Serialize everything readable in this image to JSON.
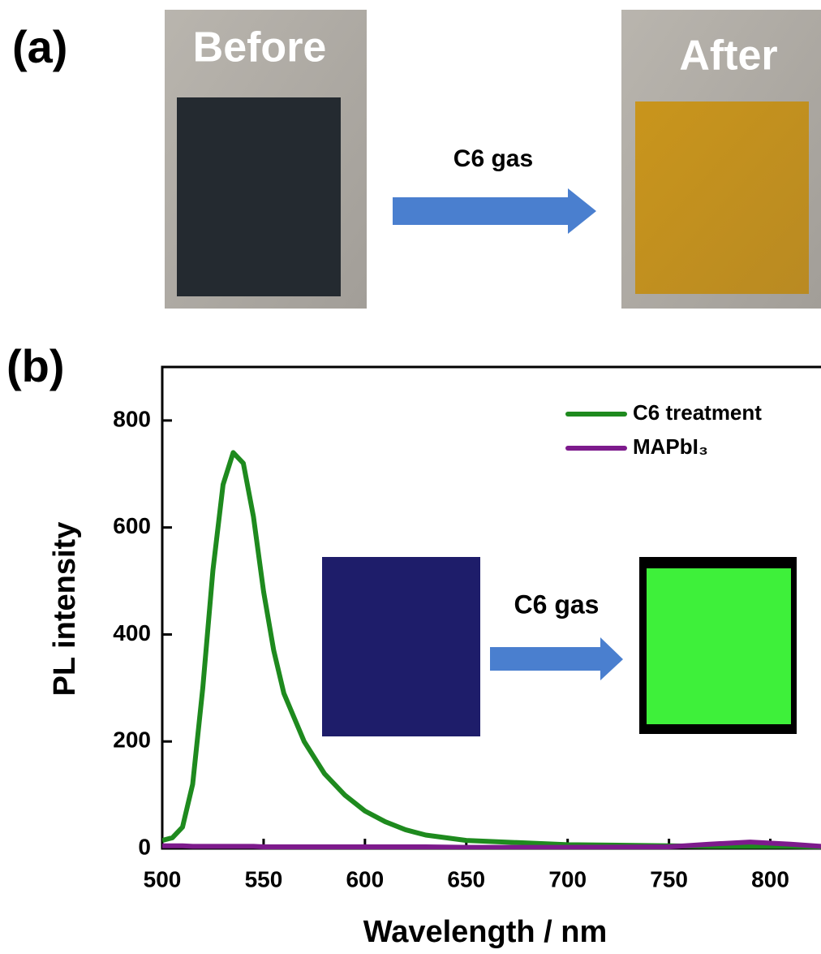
{
  "panel_a": {
    "label": "(a)",
    "before": "Before",
    "after": "After",
    "arrow_label": "C6 gas"
  },
  "chart_data": {
    "type": "line",
    "panel_label": "(b)",
    "inset_arrow_label": "C6 gas",
    "x_label": "Wavelength / nm",
    "y_label": "PL intensity",
    "x": [
      500,
      505,
      510,
      515,
      520,
      525,
      530,
      535,
      540,
      545,
      550,
      555,
      560,
      570,
      580,
      590,
      600,
      610,
      620,
      630,
      650,
      700,
      750,
      770,
      790,
      810,
      825
    ],
    "series": [
      {
        "name": "C6 treatment",
        "color": "#1e8a1e",
        "values": [
          15,
          20,
          40,
          120,
          300,
          520,
          680,
          740,
          720,
          620,
          480,
          370,
          290,
          200,
          140,
          100,
          70,
          50,
          35,
          25,
          15,
          7,
          5,
          4,
          4,
          4,
          3
        ]
      },
      {
        "name": "MAPbI₃",
        "color": "#7d1a8c",
        "values": [
          5,
          5,
          5,
          4,
          4,
          4,
          4,
          4,
          4,
          4,
          3,
          3,
          3,
          3,
          3,
          3,
          3,
          3,
          3,
          3,
          2,
          2,
          3,
          8,
          12,
          8,
          4
        ]
      }
    ],
    "xlim": [
      500,
      825
    ],
    "ylim": [
      0,
      900
    ],
    "xticks": [
      500,
      550,
      600,
      650,
      700,
      750,
      800
    ],
    "yticks": [
      0,
      200,
      400,
      600,
      800
    ],
    "legend": "upper-right"
  }
}
